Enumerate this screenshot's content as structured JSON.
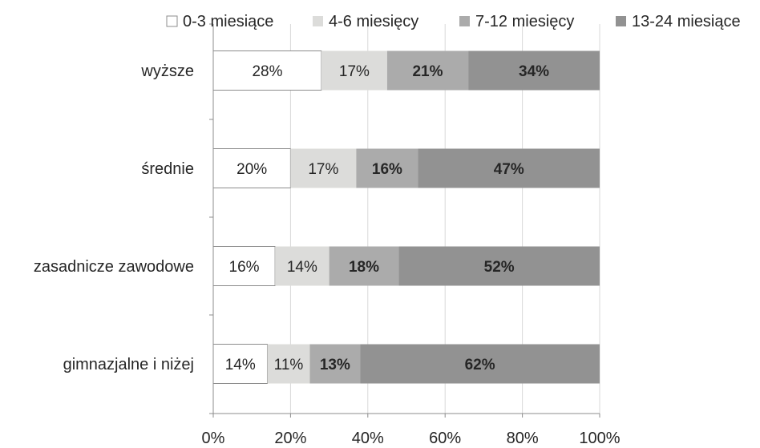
{
  "chart_data": {
    "type": "bar",
    "orientation": "horizontal",
    "stacked": "percent",
    "categories": [
      "wyższe",
      "średnie",
      "zasadnicze zawodowe",
      "gimnazjalne i niżej"
    ],
    "series": [
      {
        "name": "0-3 miesiące",
        "color": "#ffffff",
        "values": [
          28,
          20,
          16,
          14
        ],
        "labels": [
          "28%",
          "20%",
          "16%",
          "14%"
        ]
      },
      {
        "name": "4-6 miesięcy",
        "color": "#dcdcda",
        "values": [
          17,
          17,
          14,
          11
        ],
        "labels": [
          "17%",
          "17%",
          "14%",
          "11%"
        ]
      },
      {
        "name": "7-12 miesięcy",
        "color": "#ababab",
        "values": [
          21,
          16,
          18,
          13
        ],
        "labels": [
          "21%",
          "16%",
          "18%",
          "13%"
        ]
      },
      {
        "name": "13-24 miesiące",
        "color": "#929292",
        "values": [
          34,
          47,
          52,
          62
        ],
        "labels": [
          "34%",
          "47%",
          "52%",
          "62%"
        ]
      }
    ],
    "x_ticks": [
      "0%",
      "20%",
      "40%",
      "60%",
      "80%",
      "100%"
    ],
    "xlim": [
      0,
      100
    ],
    "grid": "vertical",
    "legend": "top"
  }
}
